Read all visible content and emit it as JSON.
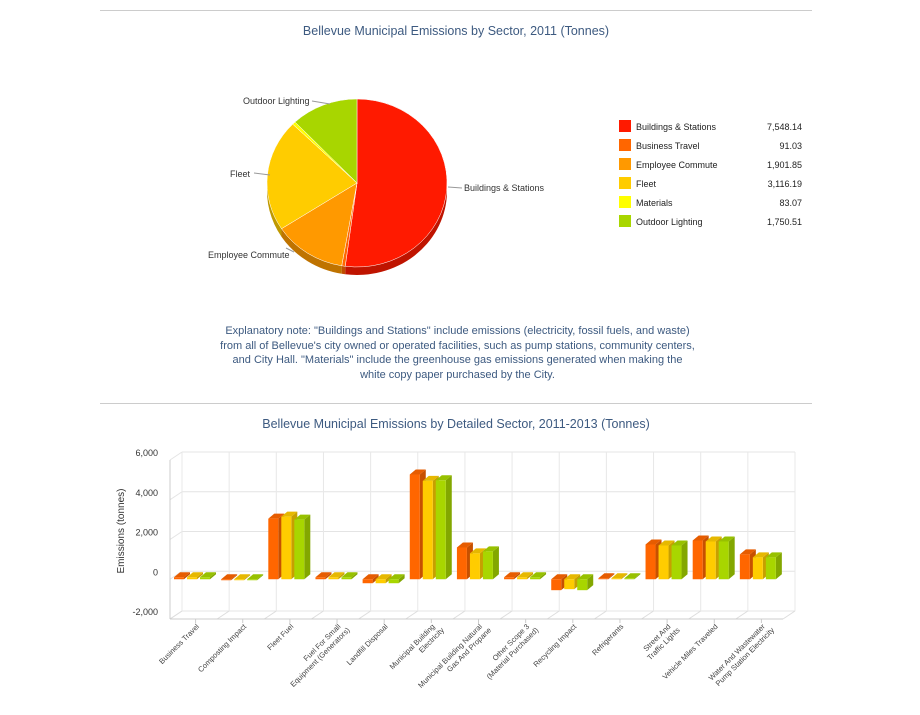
{
  "chart_data": [
    {
      "type": "pie",
      "title": "Bellevue Municipal Emissions by Sector, 2011 (Tonnes)",
      "legend_position": "right",
      "slices": [
        {
          "label": "Buildings & Stations",
          "value": 7548.14,
          "display": "7,548.14",
          "color": "#ff1a00"
        },
        {
          "label": "Business Travel",
          "value": 91.03,
          "display": "91.03",
          "color": "#ff6600"
        },
        {
          "label": "Employee Commute",
          "value": 1901.85,
          "display": "1,901.85",
          "color": "#ff9900"
        },
        {
          "label": "Fleet",
          "value": 3116.19,
          "display": "3,116.19",
          "color": "#ffcc00"
        },
        {
          "label": "Materials",
          "value": 83.07,
          "display": "83.07",
          "color": "#ffff00"
        },
        {
          "label": "Outdoor Lighting",
          "value": 1750.51,
          "display": "1,750.51",
          "color": "#a8d600"
        }
      ],
      "pie_labels": [
        "Buildings & Stations",
        "Employee Commute",
        "Fleet",
        "Outdoor Lighting"
      ],
      "note": "Explanatory note: \"Buildings and Stations\" include emissions (electricity, fossil fuels, and waste) from all of Bellevue's city owned or operated facilities, such as pump stations, community centers, and City Hall. \"Materials\" include the greenhouse gas emissions generated when making the white copy paper purchased by the City."
    },
    {
      "type": "bar",
      "title": "Bellevue Municipal Emissions by Detailed Sector, 2011-2013 (Tonnes)",
      "ylabel": "Emissions (tonnes)",
      "ylim": [
        -2000,
        6000
      ],
      "yticks": [
        "-2,000",
        "0",
        "2,000",
        "4,000",
        "6,000"
      ],
      "grid": true,
      "three_d": true,
      "categories": [
        "Business Travel",
        "Composting Impact",
        "Fleet Fuel",
        "Fuel For Small Equipment (Generators)",
        "Landfill Disposal",
        "Municipal Building Electricity",
        "Municipal Building Natural Gas And Propane",
        "Other Scope 3 (Material Purchased)",
        "Recycling Impact",
        "Refrigerants",
        "Street And Traffic Lights",
        "Vehicle Miles Traveled",
        "Water And Wastewater Pump Station Electricity"
      ],
      "series": [
        {
          "color": "#ff6600",
          "values": [
            100,
            -50,
            3050,
            100,
            -200,
            5270,
            1600,
            100,
            -550,
            50,
            1750,
            1950,
            1250
          ]
        },
        {
          "color": "#ffcc00",
          "values": [
            100,
            -50,
            3150,
            100,
            -200,
            4950,
            1300,
            100,
            -500,
            50,
            1700,
            1900,
            1100
          ]
        },
        {
          "color": "#a8d600",
          "values": [
            100,
            -50,
            3000,
            100,
            -200,
            4980,
            1400,
            100,
            -550,
            50,
            1700,
            1900,
            1100
          ]
        }
      ]
    }
  ]
}
